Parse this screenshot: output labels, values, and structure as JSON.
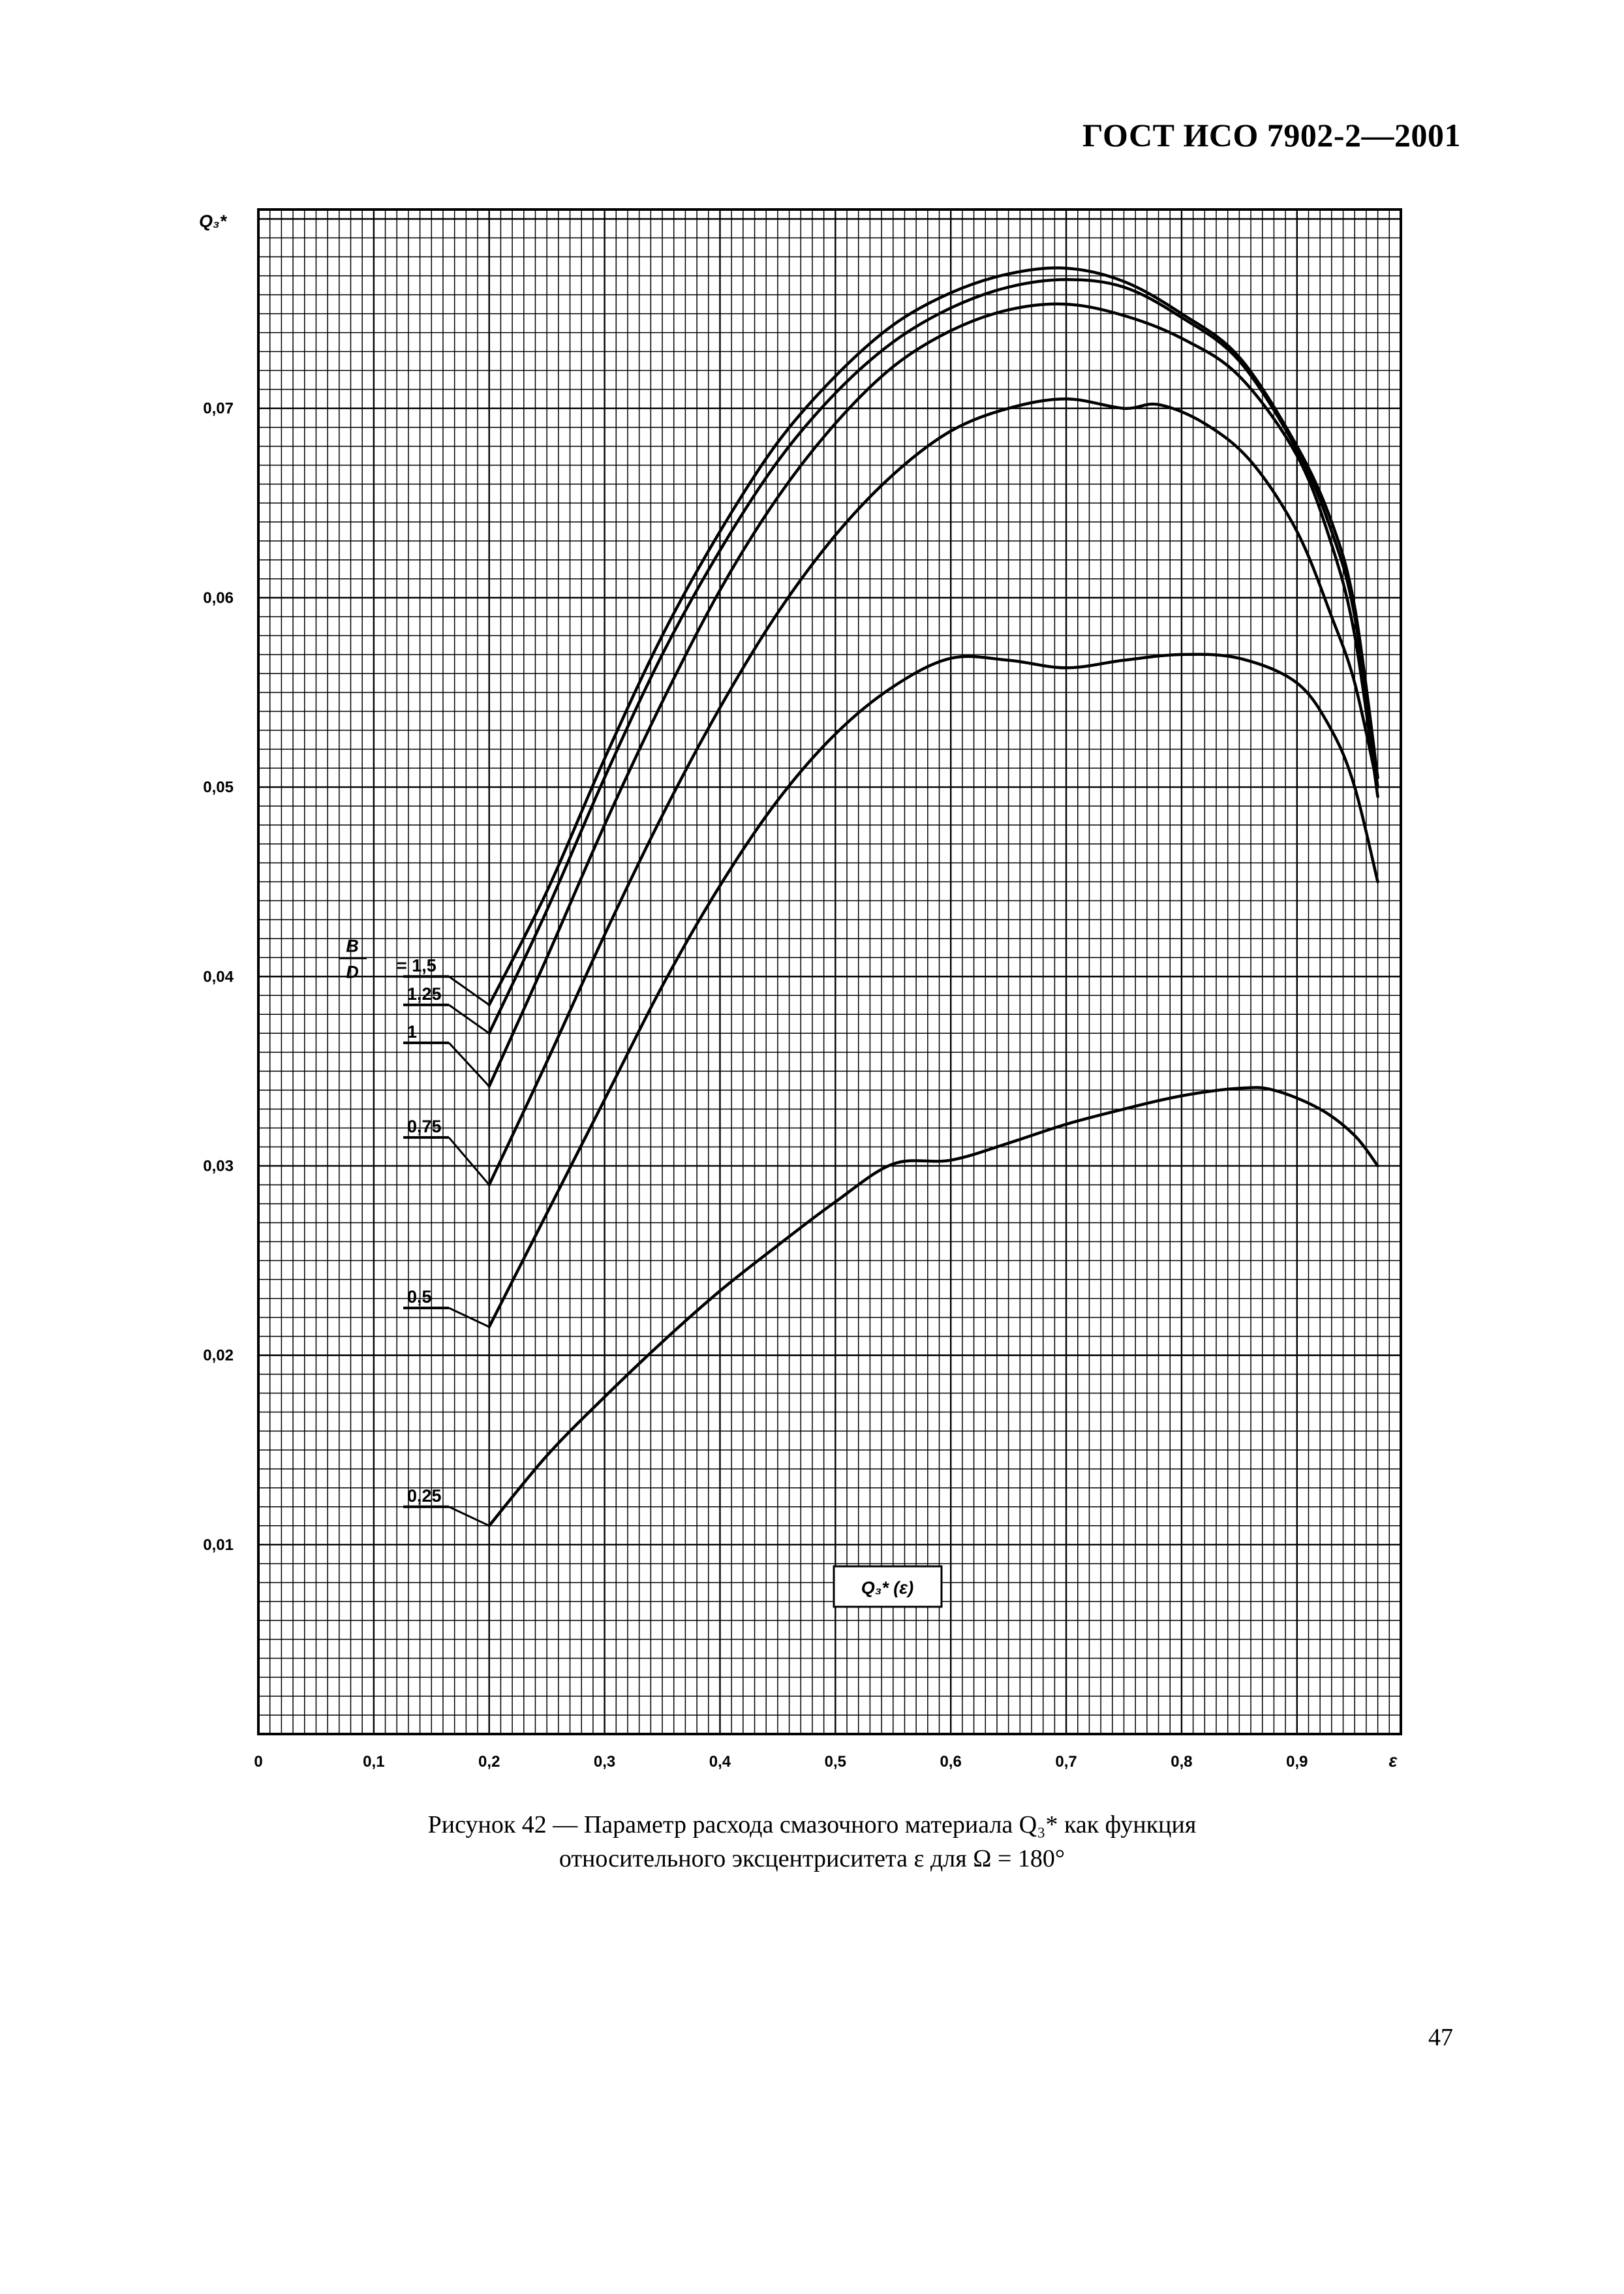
{
  "header": {
    "document_code": "ГОСТ ИСО 7902-2—2001"
  },
  "figure": {
    "caption_line1": "Рисунок 42 — Параметр расхода смазочного материала Q₃* как функция",
    "caption_line2": "относительного эксцентриситета ε для Ω = 180°"
  },
  "page_number": "47",
  "chart_data": {
    "type": "line",
    "title": "",
    "ylabel": "Q₃*",
    "xlabel": "ε",
    "xlim": [
      0,
      0.99
    ],
    "ylim": [
      0,
      0.0805
    ],
    "grid": true,
    "x_ticks": [
      0,
      0.1,
      0.2,
      0.3,
      0.4,
      0.5,
      0.6,
      0.7,
      0.8,
      0.9
    ],
    "x_tick_labels": [
      "0",
      "0,1",
      "0,2",
      "0,3",
      "0,4",
      "0,5",
      "0,6",
      "0,7",
      "0,8",
      "0,9"
    ],
    "y_ticks": [
      0.01,
      0.02,
      0.03,
      0.04,
      0.05,
      0.06,
      0.07
    ],
    "y_tick_labels": [
      "0,01",
      "0,02",
      "0,03",
      "0,04",
      "0,05",
      "0,06",
      "0,07"
    ],
    "legend_title_top": "B",
    "legend_title_bottom": "D",
    "inner_label": "Q₃* (ε)",
    "series": [
      {
        "name": "= 1,5",
        "label_value": 0.04,
        "x": [
          0.2,
          0.25,
          0.3,
          0.35,
          0.4,
          0.45,
          0.5,
          0.55,
          0.6,
          0.65,
          0.7,
          0.75,
          0.8,
          0.85,
          0.9,
          0.93,
          0.95,
          0.97
        ],
        "y": [
          0.0385,
          0.0445,
          0.0515,
          0.058,
          0.0635,
          0.0682,
          0.0717,
          0.0744,
          0.0761,
          0.0771,
          0.0774,
          0.0767,
          0.075,
          0.0727,
          0.068,
          0.064,
          0.0595,
          0.0505
        ]
      },
      {
        "name": "1,25",
        "label_value": 0.0385,
        "x": [
          0.2,
          0.25,
          0.3,
          0.35,
          0.4,
          0.45,
          0.5,
          0.55,
          0.6,
          0.65,
          0.7,
          0.75,
          0.8,
          0.85,
          0.9,
          0.93,
          0.95,
          0.97
        ],
        "y": [
          0.037,
          0.0435,
          0.0505,
          0.057,
          0.0625,
          0.0672,
          0.0708,
          0.0735,
          0.0753,
          0.0764,
          0.0768,
          0.0764,
          0.0748,
          0.0725,
          0.0678,
          0.0635,
          0.059,
          0.05
        ]
      },
      {
        "name": "1",
        "label_value": 0.0365,
        "x": [
          0.2,
          0.25,
          0.3,
          0.35,
          0.4,
          0.45,
          0.5,
          0.55,
          0.6,
          0.65,
          0.7,
          0.75,
          0.8,
          0.85,
          0.9,
          0.93,
          0.95,
          0.97
        ],
        "y": [
          0.0342,
          0.041,
          0.048,
          0.0545,
          0.0604,
          0.0653,
          0.0692,
          0.0722,
          0.0741,
          0.0752,
          0.0755,
          0.0749,
          0.0737,
          0.0717,
          0.0675,
          0.0628,
          0.058,
          0.0495
        ]
      },
      {
        "name": "0,75",
        "label_value": 0.0315,
        "x": [
          0.2,
          0.25,
          0.3,
          0.35,
          0.4,
          0.45,
          0.5,
          0.55,
          0.6,
          0.65,
          0.7,
          0.75,
          0.78,
          0.82,
          0.86,
          0.9,
          0.93,
          0.95,
          0.97
        ],
        "y": [
          0.029,
          0.0355,
          0.0422,
          0.0485,
          0.0542,
          0.0592,
          0.0633,
          0.0665,
          0.0688,
          0.07,
          0.0705,
          0.07,
          0.0702,
          0.0692,
          0.0672,
          0.0635,
          0.059,
          0.0555,
          0.05
        ]
      },
      {
        "name": "0,5",
        "label_value": 0.0225,
        "x": [
          0.2,
          0.25,
          0.3,
          0.35,
          0.4,
          0.45,
          0.5,
          0.55,
          0.6,
          0.65,
          0.7,
          0.75,
          0.8,
          0.85,
          0.9,
          0.93,
          0.95,
          0.97
        ],
        "y": [
          0.0215,
          0.0275,
          0.0335,
          0.0395,
          0.0448,
          0.0493,
          0.0528,
          0.0553,
          0.0568,
          0.0567,
          0.0563,
          0.0567,
          0.057,
          0.0568,
          0.0555,
          0.053,
          0.05,
          0.045
        ]
      },
      {
        "name": "0,25",
        "label_value": 0.012,
        "x": [
          0.2,
          0.25,
          0.3,
          0.35,
          0.4,
          0.45,
          0.5,
          0.55,
          0.6,
          0.65,
          0.7,
          0.75,
          0.8,
          0.85,
          0.88,
          0.92,
          0.95,
          0.97
        ],
        "y": [
          0.011,
          0.0147,
          0.0178,
          0.0207,
          0.0234,
          0.0258,
          0.0281,
          0.0301,
          0.0303,
          0.0312,
          0.0322,
          0.033,
          0.0337,
          0.0341,
          0.034,
          0.033,
          0.0316,
          0.03
        ]
      }
    ]
  }
}
